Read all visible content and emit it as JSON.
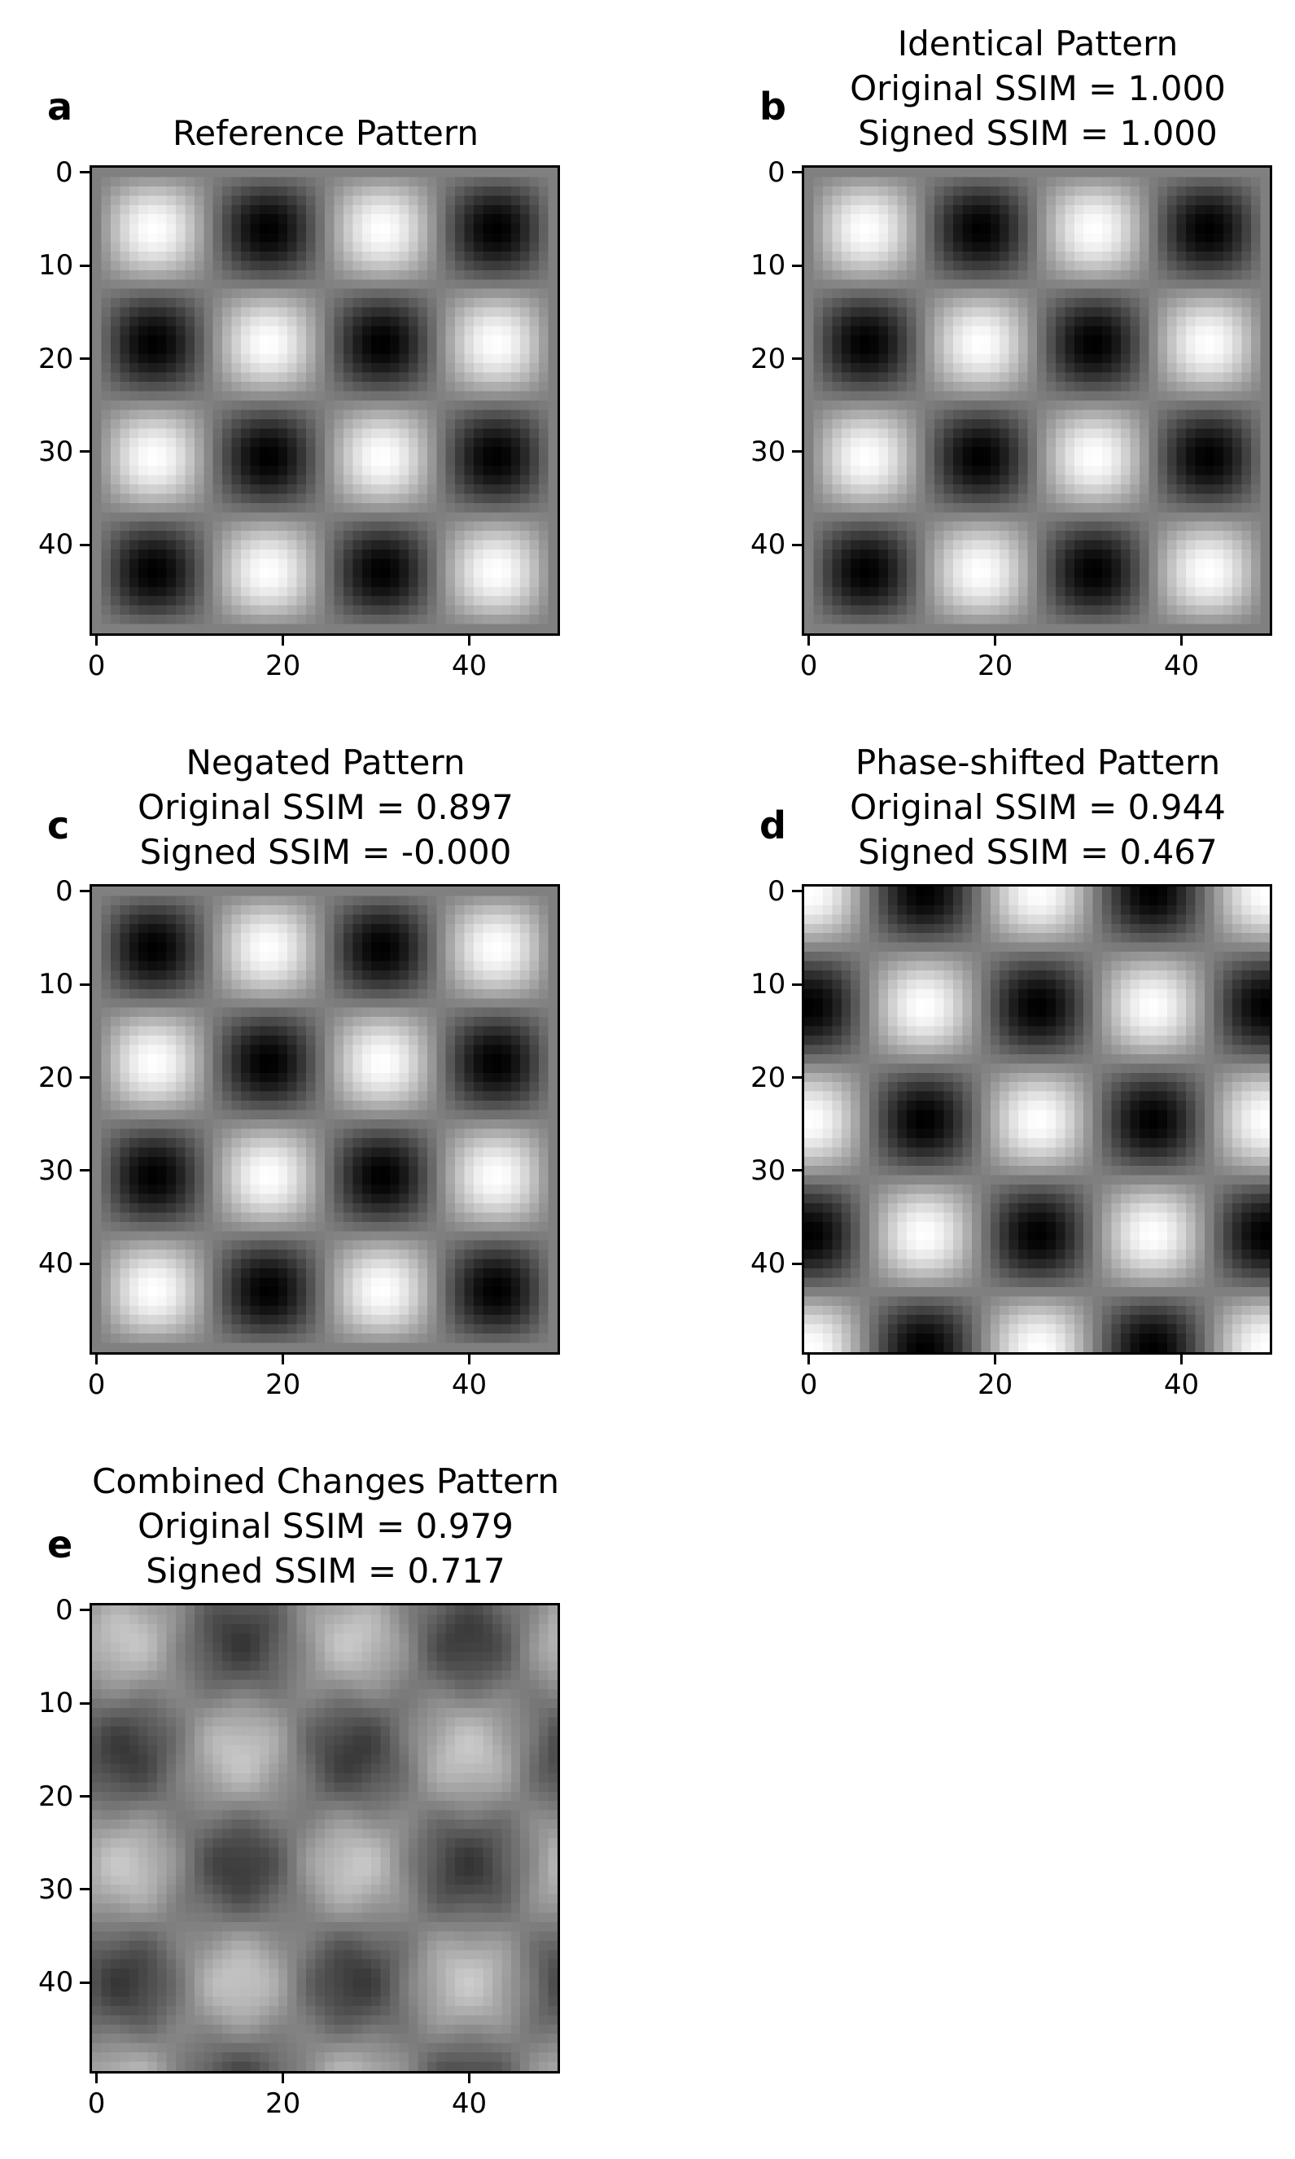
{
  "chart_data": [
    {
      "type": "heatmap",
      "panel_label": "a",
      "title_lines": [
        "Reference Pattern"
      ],
      "pattern": "reference",
      "size": [
        50,
        50
      ],
      "colormap": "gray",
      "xticks": [
        "0",
        "20",
        "40"
      ],
      "yticks": [
        "0",
        "10",
        "20",
        "30",
        "40"
      ],
      "xlim": [
        -0.5,
        49.5
      ],
      "ylim": [
        49.5,
        -0.5
      ]
    },
    {
      "type": "heatmap",
      "panel_label": "b",
      "title_lines": [
        "Identical Pattern",
        "Original SSIM = 1.000",
        "Signed SSIM = 1.000"
      ],
      "pattern": "identical",
      "original_ssim": 1.0,
      "signed_ssim": 1.0,
      "size": [
        50,
        50
      ],
      "colormap": "gray",
      "xticks": [
        "0",
        "20",
        "40"
      ],
      "yticks": [
        "0",
        "10",
        "20",
        "30",
        "40"
      ],
      "xlim": [
        -0.5,
        49.5
      ],
      "ylim": [
        49.5,
        -0.5
      ]
    },
    {
      "type": "heatmap",
      "panel_label": "c",
      "title_lines": [
        "Negated Pattern",
        "Original SSIM = 0.897",
        "Signed SSIM = -0.000"
      ],
      "pattern": "negated",
      "original_ssim": 0.897,
      "signed_ssim": -0.0,
      "size": [
        50,
        50
      ],
      "colormap": "gray",
      "xticks": [
        "0",
        "20",
        "40"
      ],
      "yticks": [
        "0",
        "10",
        "20",
        "30",
        "40"
      ],
      "xlim": [
        -0.5,
        49.5
      ],
      "ylim": [
        49.5,
        -0.5
      ]
    },
    {
      "type": "heatmap",
      "panel_label": "d",
      "title_lines": [
        "Phase-shifted Pattern",
        "Original SSIM = 0.944",
        "Signed SSIM = 0.467"
      ],
      "pattern": "phase-shifted",
      "original_ssim": 0.944,
      "signed_ssim": 0.467,
      "size": [
        50,
        50
      ],
      "colormap": "gray",
      "xticks": [
        "0",
        "20",
        "40"
      ],
      "yticks": [
        "0",
        "10",
        "20",
        "30",
        "40"
      ],
      "xlim": [
        -0.5,
        49.5
      ],
      "ylim": [
        49.5,
        -0.5
      ]
    },
    {
      "type": "heatmap",
      "panel_label": "e",
      "title_lines": [
        "Combined Changes Pattern",
        "Original SSIM = 0.979",
        "Signed SSIM = 0.717"
      ],
      "pattern": "combined",
      "original_ssim": 0.979,
      "signed_ssim": 0.717,
      "size": [
        50,
        50
      ],
      "colormap": "gray",
      "xticks": [
        "0",
        "20",
        "40"
      ],
      "yticks": [
        "0",
        "10",
        "20",
        "30",
        "40"
      ],
      "xlim": [
        -0.5,
        49.5
      ],
      "ylim": [
        49.5,
        -0.5
      ]
    }
  ]
}
